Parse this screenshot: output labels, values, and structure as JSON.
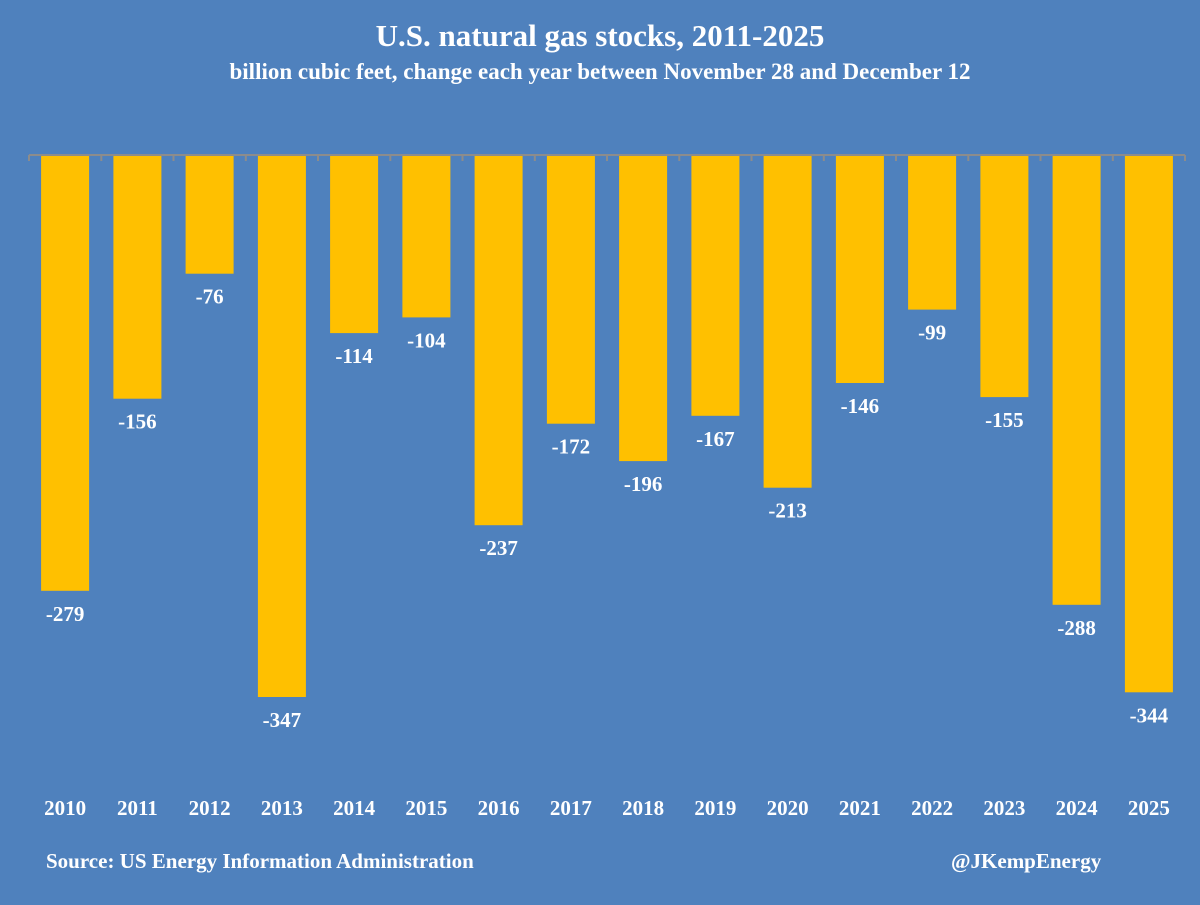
{
  "chart_data": {
    "type": "bar",
    "title": "U.S. natural gas stocks, 2011-2025",
    "subtitle": "billion cubic feet, change each year between November 28 and December 12",
    "xlabel": "",
    "ylabel": "",
    "categories": [
      "2010",
      "2011",
      "2012",
      "2013",
      "2014",
      "2015",
      "2016",
      "2017",
      "2018",
      "2019",
      "2020",
      "2021",
      "2022",
      "2023",
      "2024",
      "2025"
    ],
    "values": [
      -279,
      -156,
      -76,
      -347,
      -114,
      -104,
      -237,
      -172,
      -196,
      -167,
      -213,
      -146,
      -99,
      -155,
      -288,
      -344
    ],
    "ylim": [
      -400,
      0
    ],
    "grid": false,
    "legend": "none",
    "data_labels": true,
    "colors": {
      "background": "#4f81bd",
      "bar": "#ffc000",
      "axis": "#8c8c8c",
      "text": "#ffffff"
    }
  },
  "footer": {
    "source": "Source: US Energy Information Administration",
    "handle": "@JKempEnergy"
  }
}
